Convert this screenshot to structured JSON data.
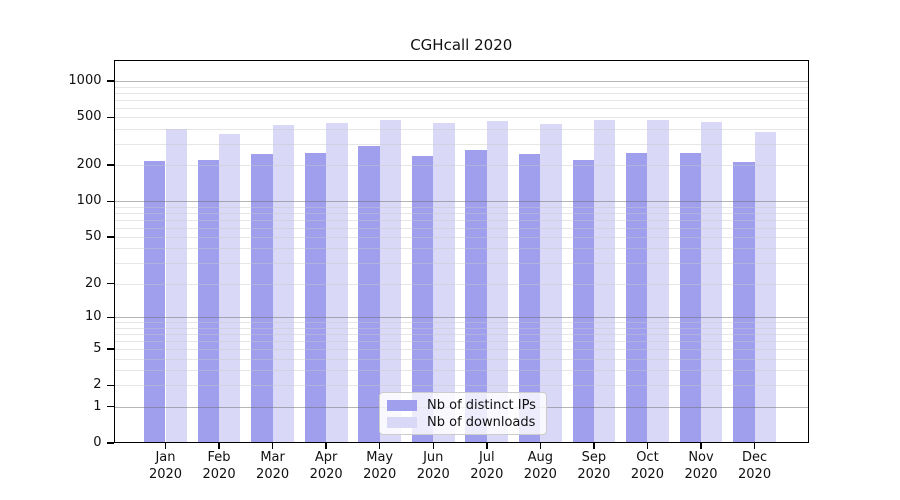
{
  "title": "CGHcall 2020",
  "chart_data": {
    "type": "bar",
    "title": "CGHcall 2020",
    "categories": [
      "Jan 2020",
      "Feb 2020",
      "Mar 2020",
      "Apr 2020",
      "May 2020",
      "Jun 2020",
      "Jul 2020",
      "Aug 2020",
      "Sep 2020",
      "Oct 2020",
      "Nov 2020",
      "Dec 2020"
    ],
    "series": [
      {
        "name": "Nb of distinct IPs",
        "values": [
          216,
          222,
          247,
          255,
          290,
          240,
          268,
          250,
          220,
          255,
          252,
          212
        ],
        "color": "#9f9fee"
      },
      {
        "name": "Nb of downloads",
        "values": [
          400,
          362,
          432,
          448,
          480,
          445,
          465,
          438,
          477,
          474,
          457,
          380
        ],
        "color": "#d9d9f7"
      }
    ],
    "yscale": "log1p",
    "ylim": [
      0,
      1450
    ],
    "yticks": [
      0,
      1,
      2,
      5,
      10,
      20,
      50,
      100,
      200,
      500,
      1000
    ],
    "grid": true,
    "legend_position": "lower center"
  },
  "y_axis": {
    "ticks": [
      {
        "label": "1000",
        "value": 1000
      },
      {
        "label": "500",
        "value": 500
      },
      {
        "label": "200",
        "value": 200
      },
      {
        "label": "100",
        "value": 100
      },
      {
        "label": "50",
        "value": 50
      },
      {
        "label": "20",
        "value": 20
      },
      {
        "label": "10",
        "value": 10
      },
      {
        "label": "5",
        "value": 5
      },
      {
        "label": "2",
        "value": 2
      },
      {
        "label": "1",
        "value": 1
      },
      {
        "label": "0",
        "value": 0
      }
    ]
  },
  "colors": {
    "ips_bar": "#9f9fee",
    "downloads_bar": "#d9d9f7",
    "axis": "#000000",
    "text": "#111111",
    "major_grid": "#6e6e6e",
    "minor_grid": "#c8c8c8",
    "legend_border": "#cccccc"
  }
}
